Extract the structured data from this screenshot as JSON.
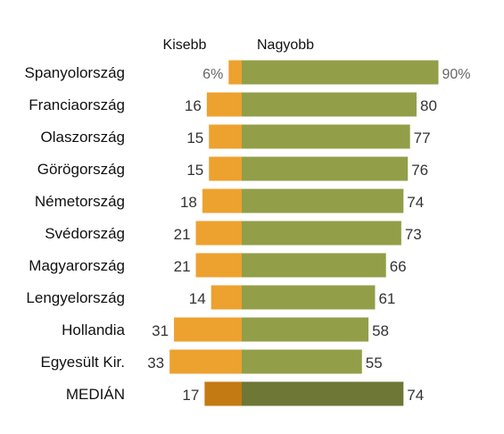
{
  "chart_data": {
    "type": "bar",
    "orientation": "horizontal-diverging",
    "headers": {
      "left": "Kisebb",
      "right": "Nagyobb"
    },
    "categories": [
      "Spanyolország",
      "Franciaország",
      "Olaszország",
      "Görögország",
      "Németország",
      "Svédország",
      "Magyarország",
      "Lengyelország",
      "Hollandia",
      "Egyesült Kir.",
      "MEDIÁN"
    ],
    "series": [
      {
        "name": "Kisebb",
        "values": [
          6,
          16,
          15,
          15,
          18,
          21,
          21,
          14,
          31,
          33,
          17
        ],
        "color": "#eda12f",
        "highlight_color": "#c47a12"
      },
      {
        "name": "Nagyobb",
        "values": [
          90,
          80,
          77,
          76,
          74,
          73,
          66,
          61,
          58,
          55,
          74
        ],
        "color": "#939e48",
        "highlight_color": "#6e7736"
      }
    ],
    "value_labels": {
      "left": [
        "6%",
        "16",
        "15",
        "15",
        "18",
        "21",
        "21",
        "14",
        "31",
        "33",
        "17"
      ],
      "right": [
        "90%",
        "80",
        "77",
        "76",
        "74",
        "73",
        "66",
        "61",
        "58",
        "55",
        "74"
      ]
    },
    "highlight_category": "MEDIÁN",
    "grid": false,
    "legend": "none"
  }
}
